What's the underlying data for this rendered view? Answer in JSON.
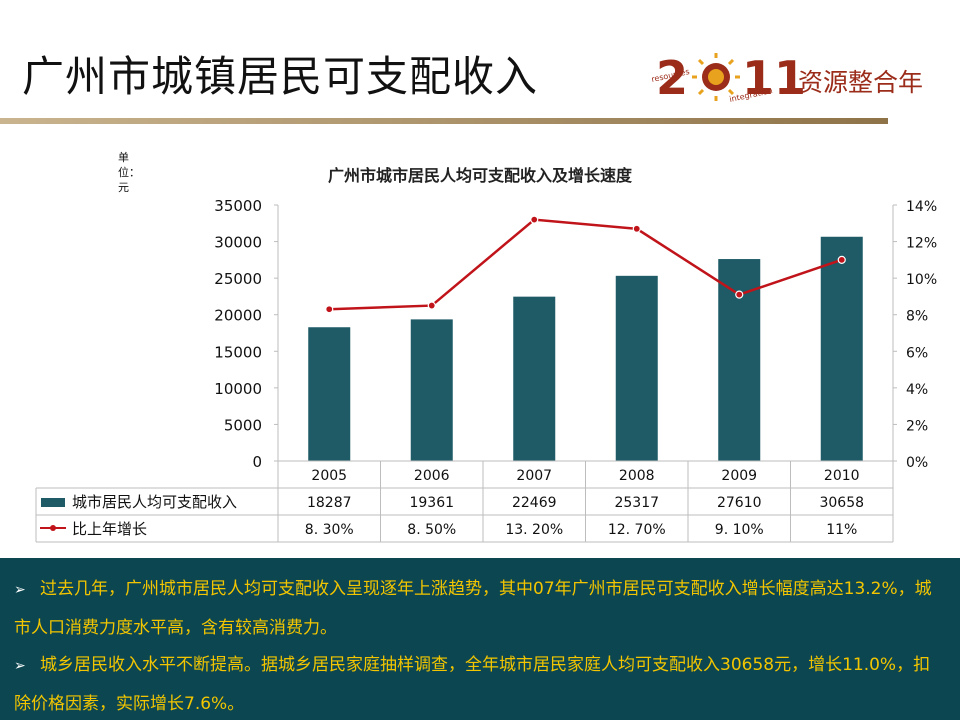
{
  "slide": {
    "title": "广州市城镇居民可支配收入",
    "logo": {
      "year_digits": "2011",
      "left_word": "resources",
      "right_word": "integration",
      "slogan": "资源整合年",
      "colors": {
        "primary": "#9b2c1a",
        "accent": "#e8a21d"
      }
    }
  },
  "chart_data": {
    "type": "bar",
    "title": "广州市城市居民人均可支配收入及增长速度",
    "unit_label": "单位：元",
    "categories": [
      "2005",
      "2006",
      "2007",
      "2008",
      "2009",
      "2010"
    ],
    "series": [
      {
        "name": "城市居民人均可支配收入",
        "type": "bar",
        "axis": "left",
        "values": [
          18287,
          19361,
          22469,
          25317,
          27610,
          30658
        ],
        "color": "#1e5b66"
      },
      {
        "name": "比上年增长",
        "type": "line",
        "axis": "right",
        "values": [
          8.3,
          8.5,
          13.2,
          12.7,
          9.1,
          11.0
        ],
        "color": "#c0141a"
      }
    ],
    "y_left": {
      "min": 0,
      "max": 35000,
      "ticks": [
        "0",
        "5000",
        "10000",
        "15000",
        "20000",
        "25000",
        "30000",
        "35000"
      ]
    },
    "y_right": {
      "min": 0,
      "max": 14,
      "ticks": [
        "0%",
        "2%",
        "4%",
        "6%",
        "8%",
        "10%",
        "12%",
        "14%"
      ]
    },
    "table": {
      "rows": [
        {
          "label": "城市居民人均可支配收入",
          "cells": [
            "18287",
            "19361",
            "22469",
            "25317",
            "27610",
            "30658"
          ]
        },
        {
          "label": "比上年增长",
          "cells": [
            "8. 30%",
            "8. 50%",
            "13. 20%",
            "12. 70%",
            "9. 10%",
            "11%"
          ]
        }
      ]
    },
    "grid": false,
    "legend": "data-table"
  },
  "bullets": [
    {
      "text": "过去几年，广州城市居民人均可支配收入呈现逐年上涨趋势，其中07年广州市居民可支配收入增长幅度高达13.2%，城市人口消费力度水平高，含有较高消费力。"
    },
    {
      "text": "城乡居民收入水平不断提高。据城乡居民家庭抽样调查，全年城市居民家庭人均可支配收入30658元，增长11.0%，扣除价格因素，实际增长7.6%。"
    }
  ],
  "bullet_icon": "arrow-right-icon"
}
